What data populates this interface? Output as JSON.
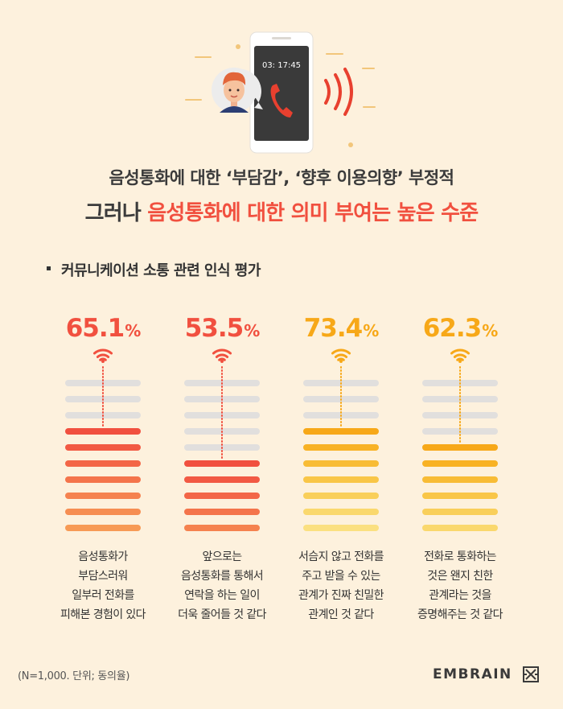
{
  "illustration": {
    "phone_time": "03: 17:45"
  },
  "headline": {
    "line1": "음성통화에 대한 ‘부담감’, ‘향후 이용의향’ 부정적",
    "line2_prefix": "그러나 ",
    "line2_accent": "음성통화에 대한 의미 부여는 높은 수준"
  },
  "section_title": "커뮤니케이션 소통 관련 인식 평가",
  "chart_data": {
    "type": "bar",
    "unit": "%",
    "categories": [
      "음성통화가\n부담스러워\n일부러 전화를\n피해본 경험이 있다",
      "앞으로는\n음성통화를 통해서\n연락을 하는 일이\n더욱 줄어들 것 같다",
      "서슴지 않고 전화를\n주고 받을 수 있는\n관계가 진짜 친밀한\n관계인 것 같다",
      "전화로 통화하는\n것은 왠지 친한\n관계라는 것을\n증명해주는 것 같다"
    ],
    "values": [
      65.1,
      53.5,
      73.4,
      62.3
    ],
    "value_labels": [
      "65.1",
      "53.5",
      "73.4",
      "62.3"
    ],
    "ylim": [
      0,
      100
    ],
    "colors": [
      "#f1503f",
      "#f1503f",
      "#f7a818",
      "#f7a818"
    ]
  },
  "footnote": "(N=1,000. 단위; 동의율)",
  "brand": {
    "name": "EMBRAIN"
  }
}
